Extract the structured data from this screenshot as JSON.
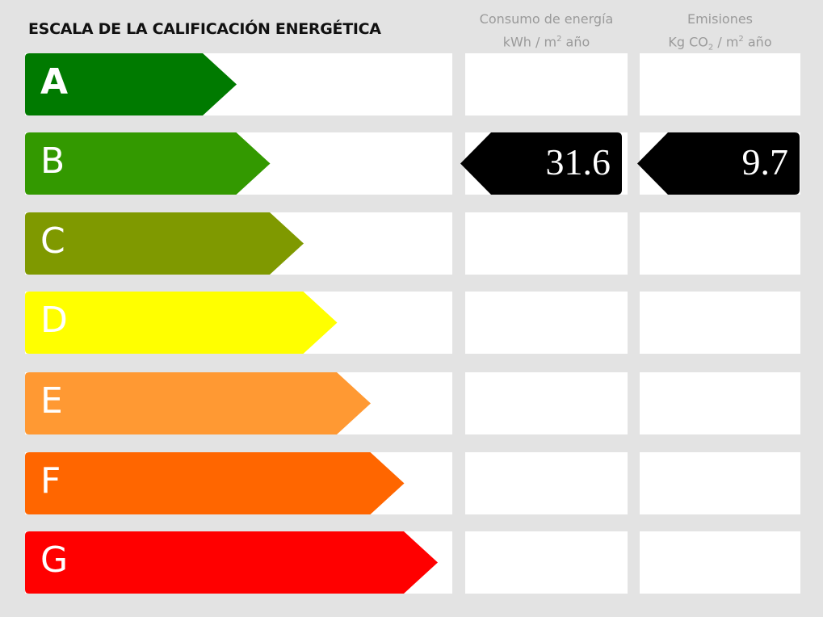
{
  "title": "ESCALA DE LA CALIFICACIÓN ENERGÉTICA",
  "columns": {
    "energy": {
      "line1": "Consumo de energía",
      "unit_prefix": "kWh / m",
      "unit_sup": "2",
      "unit_suffix": " año"
    },
    "emissions": {
      "line1": "Emisiones",
      "unit_prefix": "Kg CO",
      "unit_sub": "2",
      "unit_mid": " / m",
      "unit_sup": "2",
      "unit_suffix": " año"
    }
  },
  "ratings": [
    {
      "letter": "A",
      "color": "#007a00"
    },
    {
      "letter": "B",
      "color": "#339900"
    },
    {
      "letter": "C",
      "color": "#7f9900"
    },
    {
      "letter": "D",
      "color": "#ffff00"
    },
    {
      "letter": "E",
      "color": "#ff9933"
    },
    {
      "letter": "F",
      "color": "#ff6600"
    },
    {
      "letter": "G",
      "color": "#ff0000"
    }
  ],
  "result": {
    "rating": "B",
    "energy_value": "31.6",
    "emissions_value": "9.7",
    "indicator_color": "#000000"
  }
}
